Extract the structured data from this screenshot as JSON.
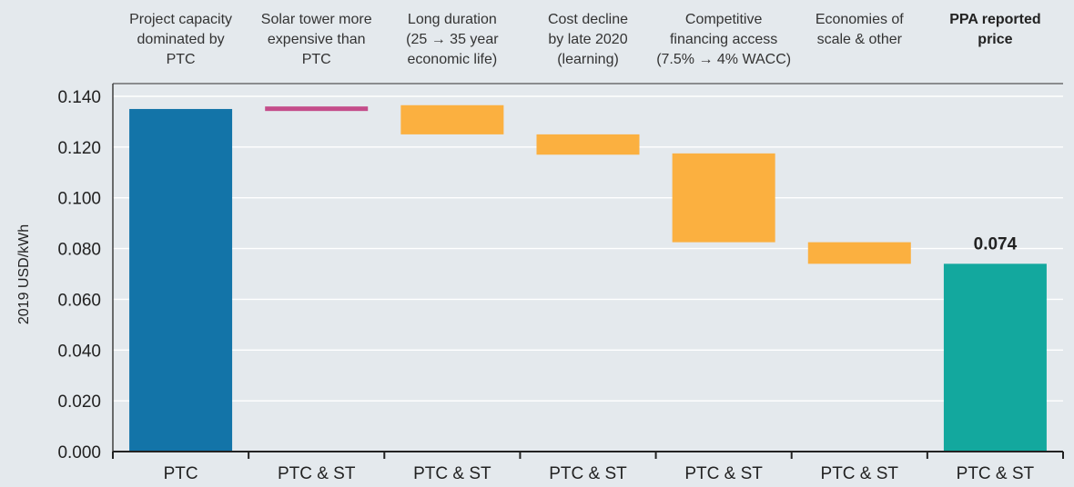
{
  "chart_data": {
    "type": "bar",
    "subtype": "waterfall",
    "ylabel": "2019 USD/kWh",
    "ylim": [
      0,
      0.14
    ],
    "yticks": [
      "0.000",
      "0.020",
      "0.040",
      "0.060",
      "0.080",
      "0.100",
      "0.120",
      "0.140"
    ],
    "grid": true,
    "steps": [
      {
        "header": [
          "Project capacity",
          "dominated by",
          "PTC"
        ],
        "category": "PTC",
        "start": 0,
        "end": 0.135,
        "kind": "total",
        "color": "#1374a8"
      },
      {
        "header": [
          "Solar tower more",
          "expensive than",
          "PTC"
        ],
        "category": "PTC & ST",
        "start": 0.135,
        "end": 0.136,
        "kind": "increase",
        "color": "#c44d8a"
      },
      {
        "header": [
          "Long duration",
          "(25 → 35 year",
          "economic life)"
        ],
        "category": "PTC & ST",
        "start": 0.1365,
        "end": 0.125,
        "kind": "decrease",
        "color": "#fbb040"
      },
      {
        "header": [
          "Cost decline",
          "by late 2020",
          "(learning)"
        ],
        "category": "PTC & ST",
        "start": 0.125,
        "end": 0.117,
        "kind": "decrease",
        "color": "#fbb040"
      },
      {
        "header": [
          "Competitive",
          "financing access",
          "(7.5% → 4% WACC)"
        ],
        "category": "PTC & ST",
        "start": 0.1175,
        "end": 0.0825,
        "kind": "decrease",
        "color": "#fbb040"
      },
      {
        "header": [
          "Economies of",
          "scale & other"
        ],
        "category": "PTC & ST",
        "start": 0.0825,
        "end": 0.074,
        "kind": "decrease",
        "color": "#fbb040"
      },
      {
        "header": [
          "PPA reported",
          "price"
        ],
        "category": "PTC & ST",
        "start": 0,
        "end": 0.074,
        "kind": "total",
        "color": "#13a89e",
        "label": "0.074",
        "bold_header": true
      }
    ]
  }
}
